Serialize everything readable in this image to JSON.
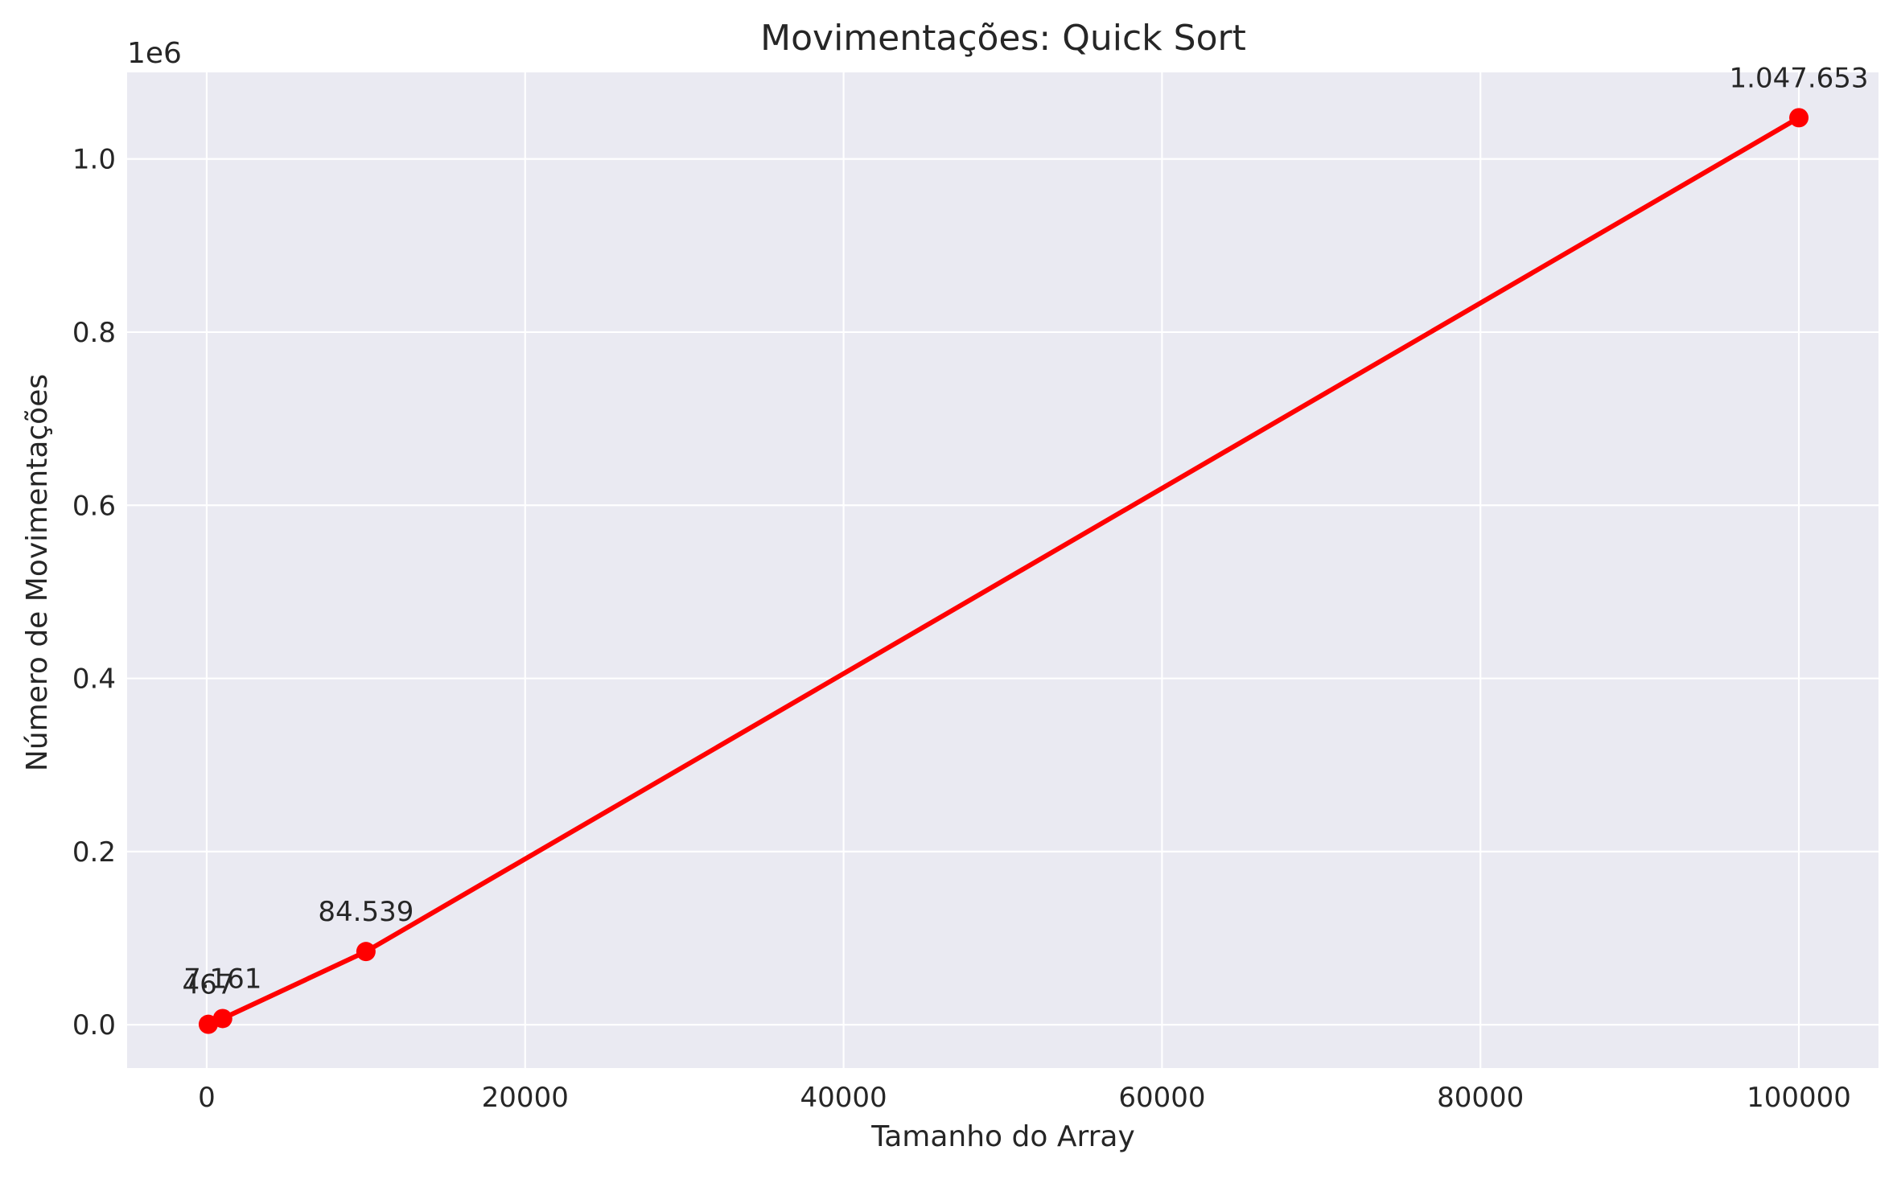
{
  "chart_data": {
    "type": "line",
    "title": "Movimentações: Quick Sort",
    "xlabel": "Tamanho do Array",
    "ylabel": "Número de Movimentações",
    "y_offset_label": "1e6",
    "x": [
      100,
      1000,
      10000,
      100000
    ],
    "series": [
      {
        "values": [
          467,
          7161,
          84539,
          1047653
        ],
        "point_labels": [
          "467",
          "7.161",
          "84.539",
          "1.047.653"
        ]
      }
    ],
    "xlim": [
      -5000,
      105000
    ],
    "ylim": [
      -50000,
      1100000
    ],
    "x_ticks": [
      0,
      20000,
      40000,
      60000,
      80000,
      100000
    ],
    "x_tick_labels": [
      "0",
      "20000",
      "40000",
      "60000",
      "80000",
      "100000"
    ],
    "y_ticks": [
      0,
      200000,
      400000,
      600000,
      800000,
      1000000
    ],
    "y_tick_labels": [
      "0.0",
      "0.2",
      "0.4",
      "0.6",
      "0.8",
      "1.0"
    ],
    "grid": true,
    "legend": "none",
    "colors": {
      "line": "#ff0000",
      "plot_background": "#eaeaf2",
      "grid": "#ffffff",
      "text": "#262626"
    }
  }
}
